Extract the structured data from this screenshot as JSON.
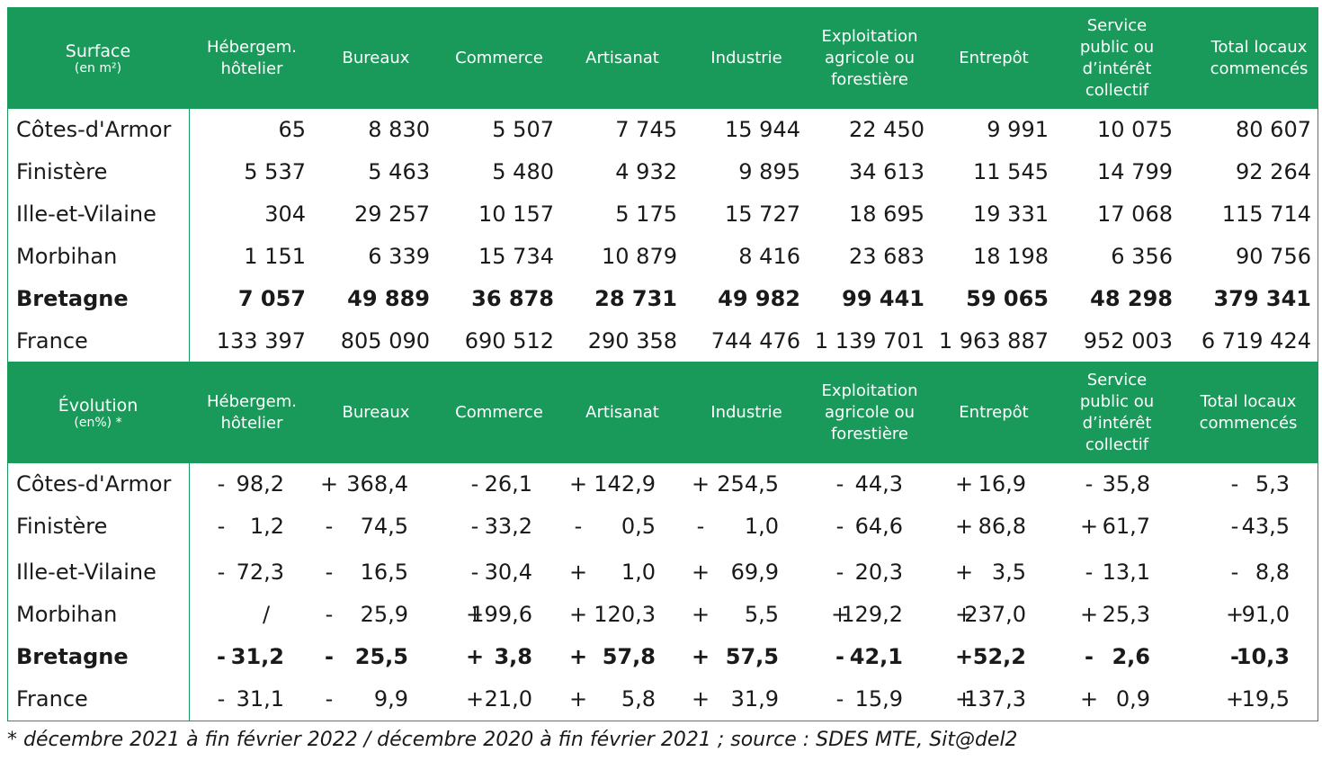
{
  "surface_header": {
    "title": "Surface",
    "unit": "(en m²)",
    "columns": [
      [
        "Hébergem.",
        "hôtelier"
      ],
      [
        "Bureaux"
      ],
      [
        "Commerce"
      ],
      [
        "Artisanat"
      ],
      [
        "Industrie"
      ],
      [
        "Exploitation",
        "agricole ou",
        "forestière"
      ],
      [
        "Entrepôt"
      ],
      [
        "Service",
        "public ou",
        "d’intérêt",
        "collectif"
      ],
      [
        "Total locaux",
        "commencés"
      ]
    ]
  },
  "surface_rows": [
    {
      "label": "Côtes-d'Armor",
      "bold": false,
      "values": [
        "65",
        "8 830",
        "5 507",
        "7 745",
        "15 944",
        "22 450",
        "9 991",
        "10 075",
        "80 607"
      ]
    },
    {
      "label": "Finistère",
      "bold": false,
      "values": [
        "5 537",
        "5 463",
        "5 480",
        "4 932",
        "9 895",
        "34 613",
        "11 545",
        "14 799",
        "92 264"
      ]
    },
    {
      "label": "Ille-et-Vilaine",
      "bold": false,
      "values": [
        "304",
        "29 257",
        "10 157",
        "5 175",
        "15 727",
        "18 695",
        "19 331",
        "17 068",
        "115 714"
      ]
    },
    {
      "label": "Morbihan",
      "bold": false,
      "values": [
        "1 151",
        "6 339",
        "15 734",
        "10 879",
        "8 416",
        "23 683",
        "18 198",
        "6 356",
        "90 756"
      ]
    },
    {
      "label": "Bretagne",
      "bold": true,
      "values": [
        "7 057",
        "49 889",
        "36 878",
        "28 731",
        "49 982",
        "99 441",
        "59 065",
        "48 298",
        "379 341"
      ]
    },
    {
      "label": "France",
      "bold": false,
      "values": [
        "133 397",
        "805 090",
        "690 512",
        "290 358",
        "744 476",
        "1 139 701",
        "1 963 887",
        "952 003",
        "6 719 424"
      ]
    }
  ],
  "evolution_header": {
    "title": "Évolution",
    "unit": "(en%) *",
    "columns": [
      [
        "Hébergem.",
        "hôtelier"
      ],
      [
        "Bureaux"
      ],
      [
        "Commerce"
      ],
      [
        "Artisanat"
      ],
      [
        "Industrie"
      ],
      [
        "Exploitation",
        "agricole ou",
        "forestière"
      ],
      [
        "Entrepôt"
      ],
      [
        "Service",
        "public ou",
        "d’intérêt",
        "collectif"
      ],
      [
        "Total locaux",
        "commencés"
      ]
    ]
  },
  "evolution_rows": [
    {
      "label": "Côtes-d'Armor",
      "bold": false,
      "values": [
        [
          "-",
          "98,2"
        ],
        [
          "+",
          "368,4"
        ],
        [
          "-",
          "26,1"
        ],
        [
          "+",
          "142,9"
        ],
        [
          "+",
          "254,5"
        ],
        [
          "-",
          "44,3"
        ],
        [
          "+",
          "16,9"
        ],
        [
          "-",
          "35,8"
        ],
        [
          "-",
          "5,3"
        ]
      ]
    },
    {
      "label": "Finistère",
      "bold": false,
      "values": [
        [
          "-",
          "1,2"
        ],
        [
          "-",
          "74,5"
        ],
        [
          "-",
          "33,2"
        ],
        [
          "-",
          "0,5"
        ],
        [
          "-",
          "1,0"
        ],
        [
          "-",
          "64,6"
        ],
        [
          "+",
          "86,8"
        ],
        [
          "+",
          "61,7"
        ],
        [
          "-",
          "43,5"
        ]
      ]
    },
    {
      "label": "Ille-et-Vilaine",
      "bold": false,
      "values": [
        [
          "-",
          "72,3"
        ],
        [
          "-",
          "16,5"
        ],
        [
          "-",
          "30,4"
        ],
        [
          "+",
          "1,0"
        ],
        [
          "+",
          "69,9"
        ],
        [
          "-",
          "20,3"
        ],
        [
          "+",
          "3,5"
        ],
        [
          "-",
          "13,1"
        ],
        [
          "-",
          "8,8"
        ]
      ]
    },
    {
      "label": "Morbihan",
      "bold": false,
      "values": [
        [
          "",
          "/"
        ],
        [
          "-",
          "25,9"
        ],
        [
          "+",
          "199,6"
        ],
        [
          "+",
          "120,3"
        ],
        [
          "+",
          "5,5"
        ],
        [
          "+",
          "129,2"
        ],
        [
          "+",
          "237,0"
        ],
        [
          "+",
          "25,3"
        ],
        [
          "+",
          "91,0"
        ]
      ]
    },
    {
      "label": "Bretagne",
      "bold": true,
      "values": [
        [
          "-",
          "31,2"
        ],
        [
          "-",
          "25,5"
        ],
        [
          "+",
          "3,8"
        ],
        [
          "+",
          "57,8"
        ],
        [
          "+",
          "57,5"
        ],
        [
          "-",
          "42,1"
        ],
        [
          "+",
          "52,2"
        ],
        [
          "-",
          "2,6"
        ],
        [
          "-",
          "10,3"
        ]
      ]
    },
    {
      "label": "France",
      "bold": false,
      "values": [
        [
          "-",
          "31,1"
        ],
        [
          "-",
          "9,9"
        ],
        [
          "+",
          "21,0"
        ],
        [
          "+",
          "5,8"
        ],
        [
          "+",
          "31,9"
        ],
        [
          "-",
          "15,9"
        ],
        [
          "+",
          "137,3"
        ],
        [
          "+",
          "0,9"
        ],
        [
          "+",
          "19,5"
        ]
      ]
    }
  ],
  "footnote": "* décembre 2021 à fin février 2022 / décembre 2020 à fin février 2021 ; source : SDES MTE, Sit@del2",
  "colors": {
    "header_bg": "#1a9a5a",
    "header_text": "#ffffff",
    "body_text": "#1a1a1a"
  }
}
